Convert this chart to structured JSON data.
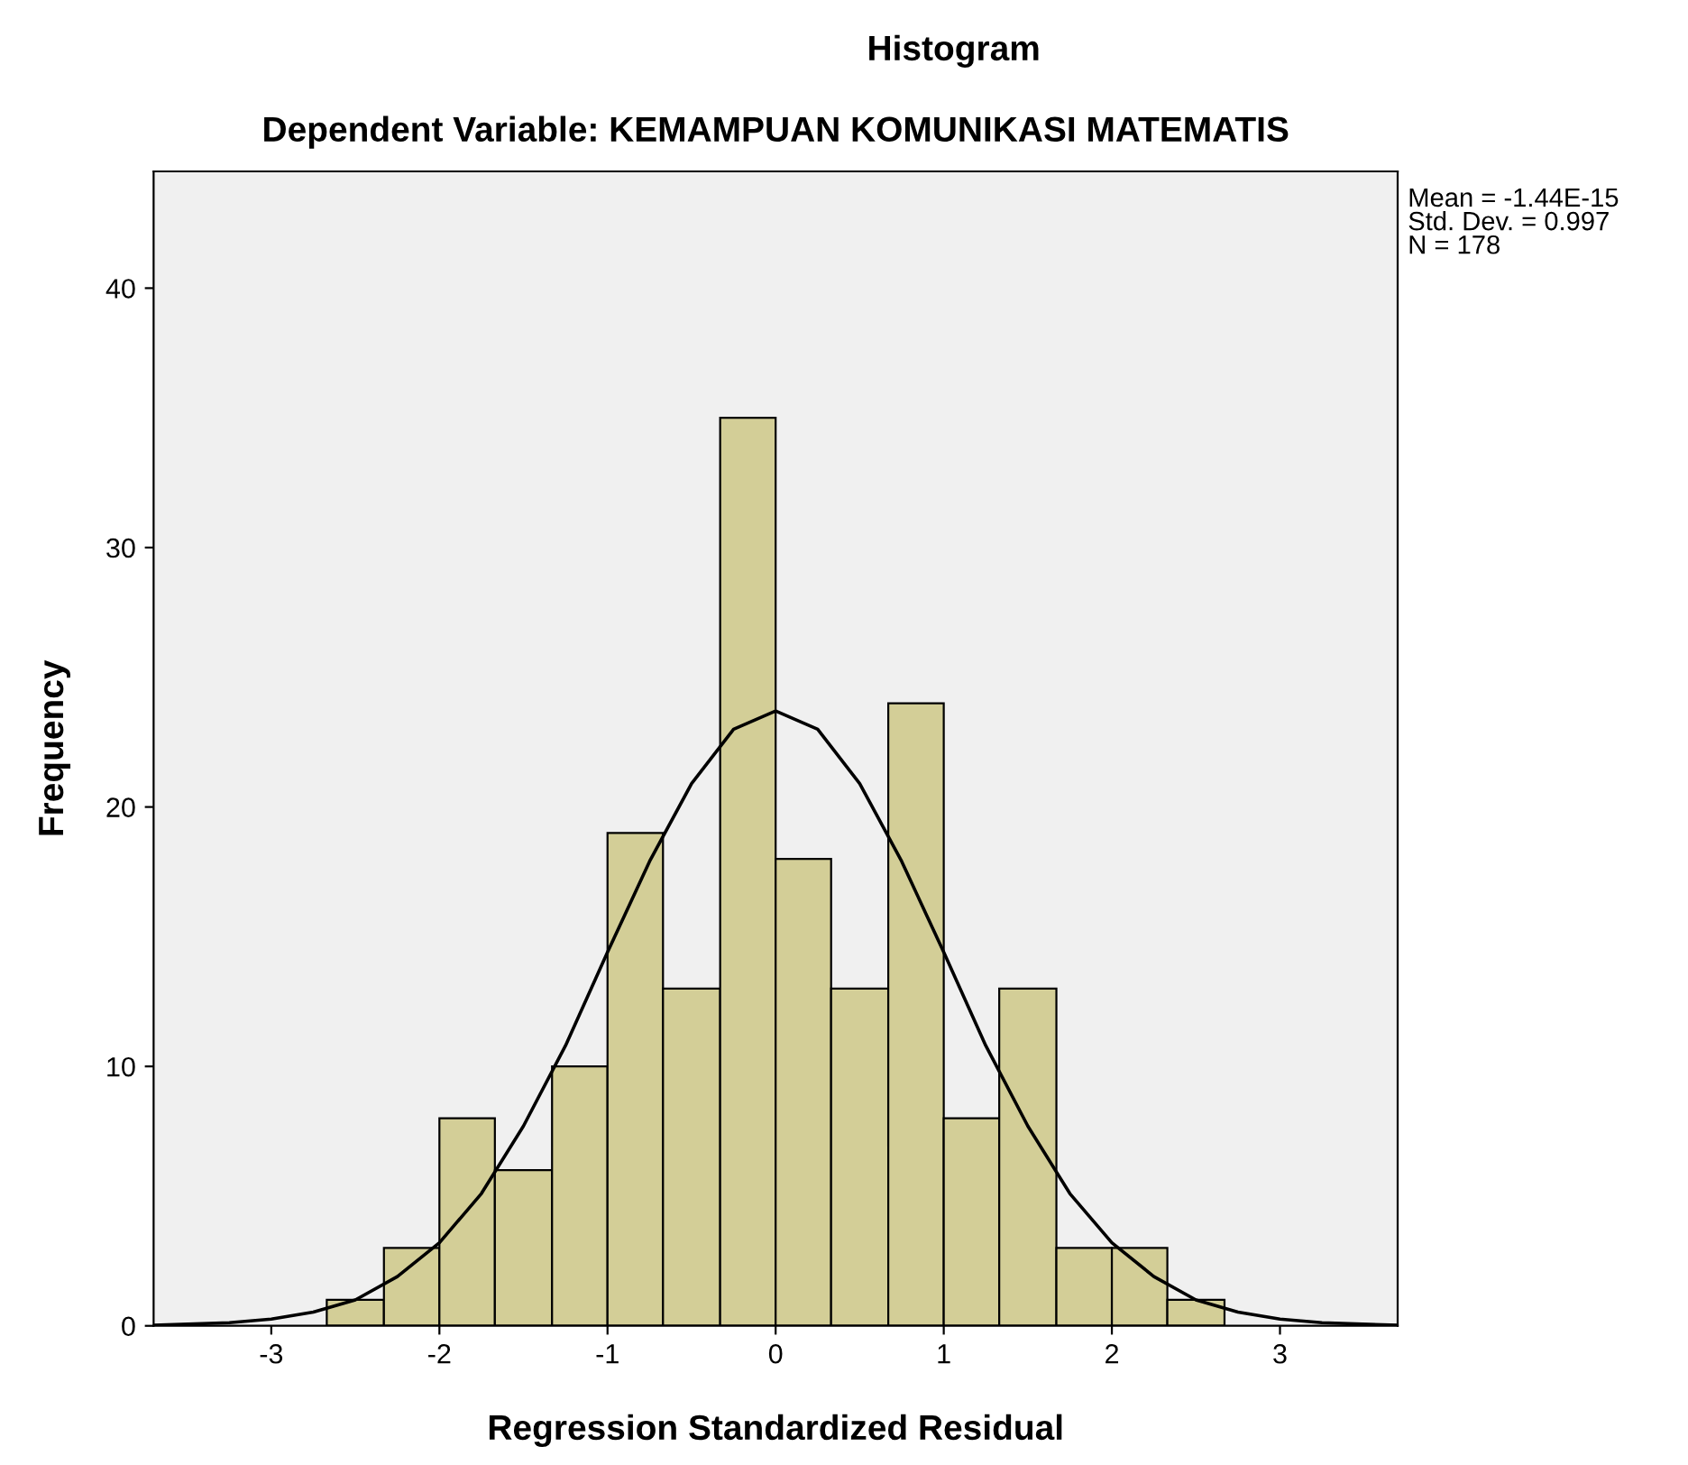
{
  "chart_data": {
    "type": "histogram",
    "title": "Histogram",
    "subtitle": "Dependent Variable: KEMAMPUAN KOMUNIKASI MATEMATIS",
    "xlabel": "Regression Standardized Residual",
    "ylabel": "Frequency",
    "bins": [
      -2.67,
      -2.33,
      -2,
      -1.67,
      -1.33,
      -1,
      -0.67,
      -0.33,
      0,
      0.33,
      0.67,
      1,
      1.33,
      1.67,
      2,
      2.33,
      2.67
    ],
    "values": [
      1,
      3,
      8,
      6,
      10,
      19,
      13,
      35,
      18,
      13,
      24,
      8,
      13,
      3,
      3,
      1
    ],
    "color": "#d3ce97",
    "series": [
      {
        "type": "line",
        "color": "#000000",
        "x": [
          -3.7,
          -3.25,
          -3,
          -2.75,
          -2.5,
          -2.25,
          -2,
          -1.75,
          -1.5,
          -1.25,
          -1,
          -0.75,
          -0.5,
          -0.25,
          0,
          0.25,
          0.5,
          0.75,
          1,
          1.25,
          1.5,
          1.75,
          2,
          2.25,
          2.5,
          2.75,
          3,
          3.25,
          3.7
        ],
        "values": [
          0.02,
          0.12,
          0.26,
          0.53,
          1.0,
          1.9,
          3.2,
          5.1,
          7.7,
          10.8,
          14.4,
          17.9,
          20.9,
          23.0,
          23.7,
          23.0,
          20.9,
          17.9,
          14.4,
          10.8,
          7.7,
          5.1,
          3.2,
          1.9,
          1.0,
          0.53,
          0.26,
          0.12,
          0.02
        ]
      }
    ],
    "xlim": [
      -3.7,
      3.7
    ],
    "ylim": [
      0,
      44.5
    ],
    "xticks": [
      -3,
      -2,
      -1,
      0,
      1,
      2,
      3
    ],
    "yticks": [
      0,
      10,
      20,
      30,
      40
    ],
    "annotations": [
      "Mean = -1.44E-15\nStd. Dev. = 0.997\nN = 178"
    ],
    "grid": false,
    "legend": false
  }
}
